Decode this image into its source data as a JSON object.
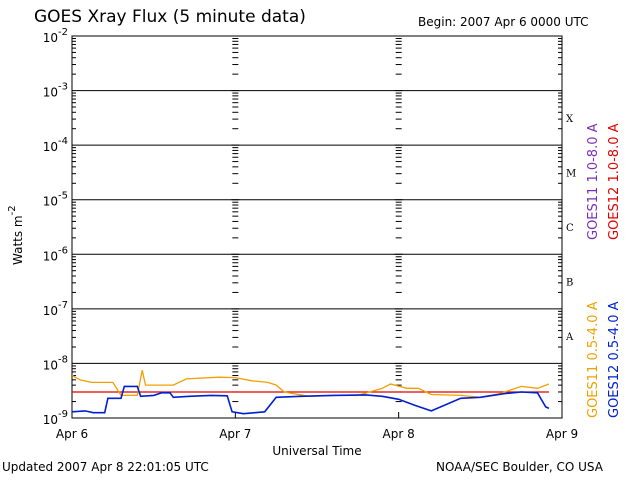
{
  "header": {
    "title": "GOES Xray Flux (5 minute data)",
    "begin": "Begin:  2007 Apr 6 0000 UTC"
  },
  "footer": {
    "updated": "Updated 2007 Apr  8 22:01:05 UTC",
    "credit": "NOAA/SEC Boulder, CO USA"
  },
  "chart_data": {
    "type": "line",
    "title": "GOES Xray Flux (5 minute data)",
    "xlabel": "Universal Time",
    "ylabel": "Watts m",
    "ylabel_sup": "-2",
    "yscale": "log",
    "ylim": [
      1e-09,
      0.01
    ],
    "xlim": [
      0,
      3
    ],
    "grid": true,
    "x_ticks": [
      {
        "value": 0,
        "label": "Apr 6"
      },
      {
        "value": 1,
        "label": "Apr 7"
      },
      {
        "value": 2,
        "label": "Apr 8"
      },
      {
        "value": 3,
        "label": "Apr 9"
      }
    ],
    "y_ticks": [
      {
        "exp": -2,
        "label": "10",
        "sup": "-2"
      },
      {
        "exp": -3,
        "label": "10",
        "sup": "-3"
      },
      {
        "exp": -4,
        "label": "10",
        "sup": "-4"
      },
      {
        "exp": -5,
        "label": "10",
        "sup": "-5"
      },
      {
        "exp": -6,
        "label": "10",
        "sup": "-6"
      },
      {
        "exp": -7,
        "label": "10",
        "sup": "-7"
      },
      {
        "exp": -8,
        "label": "10",
        "sup": "-8"
      },
      {
        "exp": -9,
        "label": "10",
        "sup": "-9"
      }
    ],
    "flare_classes": [
      {
        "label": "X",
        "exp": -3.5
      },
      {
        "label": "M",
        "exp": -4.5
      },
      {
        "label": "C",
        "exp": -5.5
      },
      {
        "label": "B",
        "exp": -6.5
      },
      {
        "label": "A",
        "exp": -7.5
      }
    ],
    "series": [
      {
        "name": "GOES11 1.0-8.0 A",
        "color": "#7b2fb8",
        "points": []
      },
      {
        "name": "GOES12 1.0-8.0 A",
        "color": "#e00000",
        "points": [
          [
            0.0,
            3e-09
          ],
          [
            0.5,
            3e-09
          ],
          [
            1.0,
            3e-09
          ],
          [
            1.5,
            3e-09
          ],
          [
            2.0,
            3e-09
          ],
          [
            2.5,
            3e-09
          ],
          [
            2.92,
            3e-09
          ]
        ]
      },
      {
        "name": "GOES11 0.5-4.0 A",
        "color": "#f0a000",
        "points": [
          [
            0.0,
            6e-09
          ],
          [
            0.05,
            5e-09
          ],
          [
            0.12,
            4.5e-09
          ],
          [
            0.25,
            4.5e-09
          ],
          [
            0.3,
            2.6e-09
          ],
          [
            0.4,
            2.6e-09
          ],
          [
            0.43,
            7.5e-09
          ],
          [
            0.45,
            4e-09
          ],
          [
            0.62,
            4e-09
          ],
          [
            0.7,
            5.2e-09
          ],
          [
            0.9,
            5.6e-09
          ],
          [
            1.0,
            5.5e-09
          ],
          [
            1.1,
            4.8e-09
          ],
          [
            1.2,
            4.5e-09
          ],
          [
            1.25,
            4e-09
          ],
          [
            1.3,
            3e-09
          ],
          [
            1.45,
            2.5e-09
          ],
          [
            1.6,
            2.6e-09
          ],
          [
            1.75,
            2.6e-09
          ],
          [
            1.9,
            3.5e-09
          ],
          [
            1.95,
            4.2e-09
          ],
          [
            2.05,
            3.5e-09
          ],
          [
            2.12,
            3.5e-09
          ],
          [
            2.2,
            2.7e-09
          ],
          [
            2.38,
            2.6e-09
          ],
          [
            2.5,
            2.4e-09
          ],
          [
            2.62,
            2.8e-09
          ],
          [
            2.75,
            3.8e-09
          ],
          [
            2.85,
            3.5e-09
          ],
          [
            2.92,
            4.2e-09
          ]
        ]
      },
      {
        "name": "GOES12 0.5-4.0 A",
        "color": "#0020d0",
        "points": [
          [
            0.0,
            1.3e-09
          ],
          [
            0.08,
            1.35e-09
          ],
          [
            0.13,
            1.25e-09
          ],
          [
            0.2,
            1.25e-09
          ],
          [
            0.22,
            2.3e-09
          ],
          [
            0.3,
            2.3e-09
          ],
          [
            0.32,
            3.8e-09
          ],
          [
            0.4,
            3.8e-09
          ],
          [
            0.42,
            2.5e-09
          ],
          [
            0.5,
            2.6e-09
          ],
          [
            0.55,
            2.9e-09
          ],
          [
            0.6,
            2.9e-09
          ],
          [
            0.62,
            2.4e-09
          ],
          [
            0.72,
            2.5e-09
          ],
          [
            0.85,
            2.6e-09
          ],
          [
            0.95,
            2.55e-09
          ],
          [
            0.98,
            1.3e-09
          ],
          [
            1.05,
            1.2e-09
          ],
          [
            1.12,
            1.25e-09
          ],
          [
            1.18,
            1.3e-09
          ],
          [
            1.25,
            2.4e-09
          ],
          [
            1.4,
            2.5e-09
          ],
          [
            1.6,
            2.6e-09
          ],
          [
            1.8,
            2.65e-09
          ],
          [
            1.9,
            2.5e-09
          ],
          [
            2.0,
            2.2e-09
          ],
          [
            2.1,
            1.7e-09
          ],
          [
            2.2,
            1.35e-09
          ],
          [
            2.38,
            2.3e-09
          ],
          [
            2.5,
            2.4e-09
          ],
          [
            2.65,
            2.8e-09
          ],
          [
            2.75,
            3e-09
          ],
          [
            2.85,
            2.9e-09
          ],
          [
            2.9,
            1.6e-09
          ],
          [
            2.92,
            1.5e-09
          ]
        ]
      }
    ]
  }
}
